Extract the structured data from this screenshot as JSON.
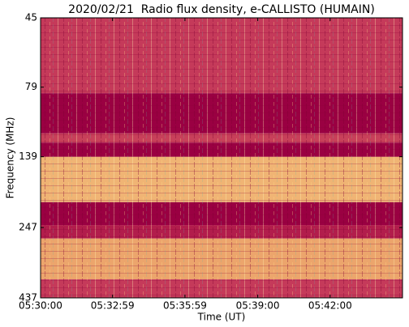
{
  "chart_data": {
    "type": "spectrogram",
    "title": "2020/02/21  Radio flux density, e-CALLISTO (HUMAIN)",
    "xlabel": "Time (UT)",
    "ylabel": "Frequency (MHz)",
    "xlim": [
      0,
      900
    ],
    "xticks": [
      {
        "value": 0,
        "label": "05:30:00"
      },
      {
        "value": 179,
        "label": "05:32:59"
      },
      {
        "value": 359,
        "label": "05:35:59"
      },
      {
        "value": 540,
        "label": "05:39:00"
      },
      {
        "value": 720,
        "label": "05:42:00"
      }
    ],
    "ylim": [
      45,
      437
    ],
    "yscale": "log",
    "yinverted": true,
    "yticks": [
      45,
      79,
      139,
      247,
      437
    ],
    "bands": [
      {
        "from": 45,
        "to": 83,
        "color": "#c53a5a"
      },
      {
        "from": 83,
        "to": 115,
        "color": "#9a0042"
      },
      {
        "from": 115,
        "to": 124,
        "color": "#c8405a"
      },
      {
        "from": 124,
        "to": 139,
        "color": "#9a0042"
      },
      {
        "from": 139,
        "to": 201,
        "color": "#f0b474"
      },
      {
        "from": 201,
        "to": 242,
        "color": "#9a0042"
      },
      {
        "from": 242,
        "to": 270,
        "color": "#b21d4c"
      },
      {
        "from": 270,
        "to": 376,
        "color": "#eca56c"
      },
      {
        "from": 376,
        "to": 437,
        "color": "#c53a5a"
      }
    ]
  }
}
